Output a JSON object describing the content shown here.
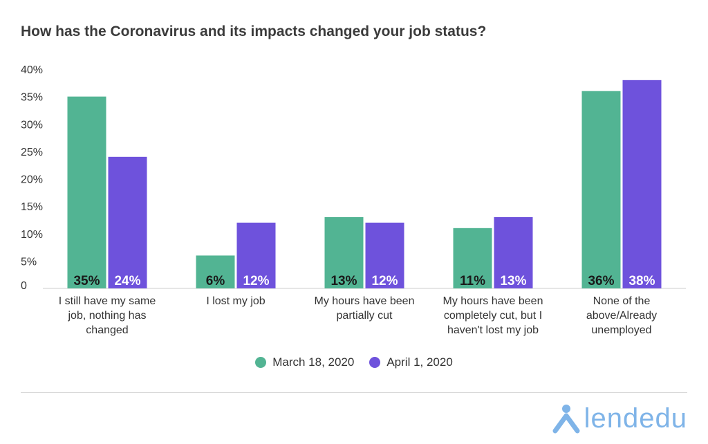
{
  "chart_data": {
    "type": "bar",
    "title": "How has the Coronavirus and its impacts changed your job status?",
    "categories": [
      [
        "I still have my same",
        "job, nothing has",
        "changed"
      ],
      [
        "I lost my job"
      ],
      [
        "My hours have been",
        "partially cut"
      ],
      [
        "My hours have been",
        "completely cut, but I",
        "haven't lost my job"
      ],
      [
        "None of the",
        "above/Already",
        "unemployed"
      ]
    ],
    "series": [
      {
        "name": "March 18, 2020",
        "color": "#52b493",
        "values": [
          35,
          6,
          13,
          11,
          36
        ],
        "labels": [
          "35%",
          "6%",
          "13%",
          "11%",
          "36%"
        ]
      },
      {
        "name": "April 1, 2020",
        "color": "#6e52dc",
        "values": [
          24,
          12,
          12,
          13,
          38
        ],
        "labels": [
          "24%",
          "12%",
          "12%",
          "13%",
          "38%"
        ]
      }
    ],
    "yticks": [
      "0",
      "5%",
      "10%",
      "15%",
      "20%",
      "25%",
      "30%",
      "35%",
      "40%"
    ],
    "ylim": [
      0,
      40
    ],
    "grid": false,
    "legend_position": "bottom"
  },
  "logo": {
    "text": "lendedu",
    "color": "#7fb4e8"
  }
}
